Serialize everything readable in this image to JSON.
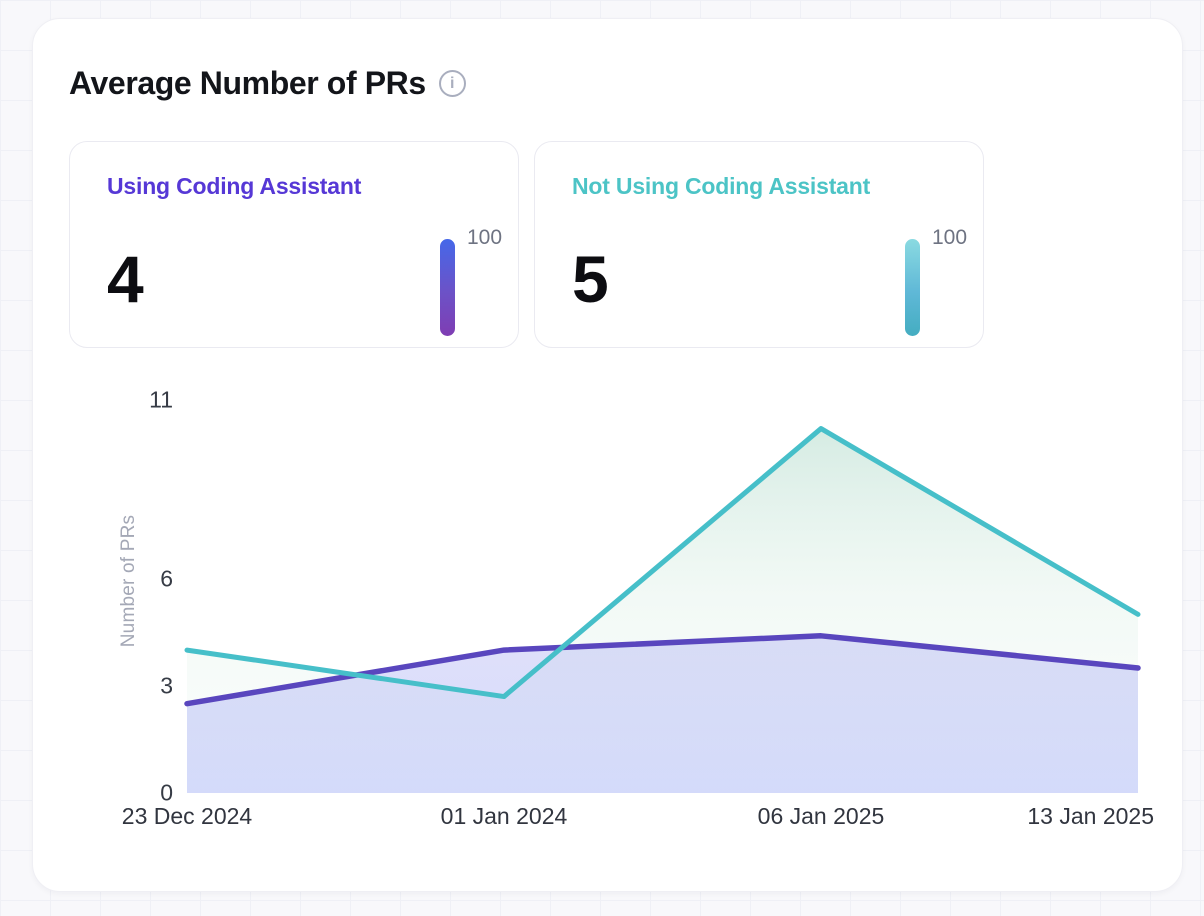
{
  "header": {
    "title": "Average Number of PRs"
  },
  "stat_cards": [
    {
      "label": "Using Coding Assistant",
      "value": "4",
      "scale_max": "100",
      "accent_color": "#5638D6",
      "bar_gradient": [
        "#4568E9",
        "#6C52C7 55%",
        "#7F3DB3"
      ]
    },
    {
      "label": "Not Using Coding Assistant",
      "value": "5",
      "scale_max": "100",
      "accent_color": "#4CC4C6",
      "bar_gradient": [
        "#8ADAE1",
        "#5FB8D7 55%",
        "#44ADC1"
      ]
    }
  ],
  "chart_data": {
    "type": "area",
    "x": [
      "23 Dec 2024",
      "01 Jan 2024",
      "06 Jan 2025",
      "13 Jan 2025"
    ],
    "series": [
      {
        "name": "Using Coding Assistant",
        "color": "#5946BE",
        "values": [
          2.5,
          4,
          4.4,
          3.5
        ]
      },
      {
        "name": "Not Using Coding Assistant",
        "color": "#46BFC9",
        "values": [
          4,
          2.7,
          10.2,
          5
        ]
      }
    ],
    "title": "Average Number of PRs",
    "xlabel": "",
    "ylabel": "Number of PRs",
    "yticks": [
      0,
      3,
      6,
      11
    ],
    "ylim": [
      0,
      11
    ],
    "grid": false,
    "legend": "none",
    "area_fill_purple": [
      "rgba(162,148,232,0.22)",
      "rgba(148,162,246,0.38)"
    ],
    "area_fill_teal": [
      "rgba(128,196,170,0.38)",
      "rgba(190,225,208,0.20)",
      "rgba(225,242,234,0.12)"
    ]
  }
}
